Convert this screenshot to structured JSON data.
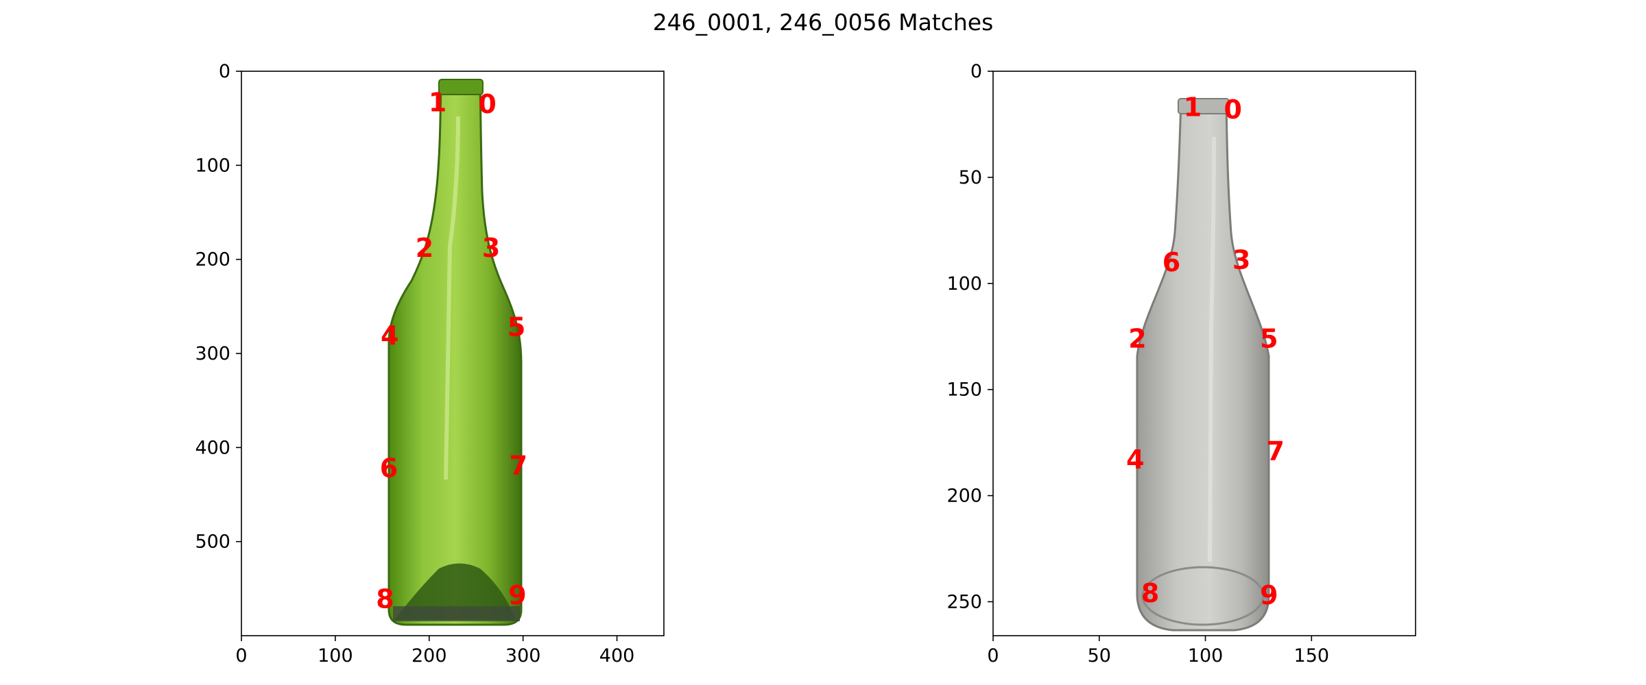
{
  "figure": {
    "title": "246_0001, 246_0056 Matches",
    "keypoint_color": "#ff0000"
  },
  "chart_data": [
    {
      "type": "scatter",
      "image": "green glass wine bottle on white background",
      "xlim": [
        0,
        450
      ],
      "ylim": [
        600,
        0
      ],
      "xticks": [
        0,
        100,
        200,
        300,
        400
      ],
      "yticks": [
        0,
        100,
        200,
        300,
        400,
        500
      ],
      "grid": false,
      "points": [
        {
          "label": "0",
          "x": 262,
          "y": 35
        },
        {
          "label": "1",
          "x": 209,
          "y": 33
        },
        {
          "label": "2",
          "x": 195,
          "y": 188
        },
        {
          "label": "3",
          "x": 266,
          "y": 188
        },
        {
          "label": "4",
          "x": 158,
          "y": 281
        },
        {
          "label": "5",
          "x": 293,
          "y": 272
        },
        {
          "label": "6",
          "x": 157,
          "y": 422
        },
        {
          "label": "7",
          "x": 295,
          "y": 419
        },
        {
          "label": "8",
          "x": 153,
          "y": 561
        },
        {
          "label": "9",
          "x": 294,
          "y": 557
        }
      ]
    },
    {
      "type": "scatter",
      "image": "gray glass bottle on white background",
      "xlim": [
        0,
        199
      ],
      "ylim": [
        266,
        0
      ],
      "xticks": [
        0,
        50,
        100,
        150
      ],
      "yticks": [
        0,
        50,
        100,
        150,
        200,
        250
      ],
      "grid": false,
      "points": [
        {
          "label": "0",
          "x": 113,
          "y": 18
        },
        {
          "label": "1",
          "x": 94,
          "y": 17
        },
        {
          "label": "2",
          "x": 68,
          "y": 126
        },
        {
          "label": "3",
          "x": 117,
          "y": 89
        },
        {
          "label": "4",
          "x": 67,
          "y": 183
        },
        {
          "label": "5",
          "x": 130,
          "y": 126
        },
        {
          "label": "6",
          "x": 84,
          "y": 90
        },
        {
          "label": "7",
          "x": 133,
          "y": 179
        },
        {
          "label": "8",
          "x": 74,
          "y": 246
        },
        {
          "label": "9",
          "x": 130,
          "y": 247
        }
      ]
    }
  ]
}
